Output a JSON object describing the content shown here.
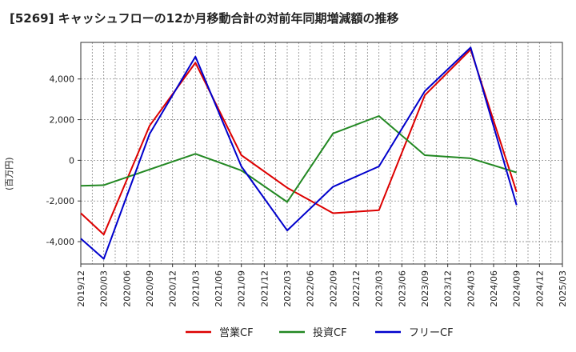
{
  "chart_data": {
    "type": "line",
    "title": "[5269]  キャッシュフローの12か月移動合計の対前年同期増減額の推移",
    "ylabel": "(百万円)",
    "xlabel": "",
    "x_ticks": [
      "2019/12",
      "2020/03",
      "2020/06",
      "2020/09",
      "2020/12",
      "2021/03",
      "2021/06",
      "2021/09",
      "2021/12",
      "2022/03",
      "2022/06",
      "2022/09",
      "2022/12",
      "2023/03",
      "2023/06",
      "2023/09",
      "2023/12",
      "2024/03",
      "2024/06",
      "2024/09",
      "2024/12",
      "2025/03"
    ],
    "y_ticks": [
      4000,
      2000,
      0,
      -2000,
      -4000
    ],
    "y_tick_labels": [
      "4,000",
      "2,000",
      "0",
      "-2,000",
      "-4,000"
    ],
    "ylim": [
      -5100,
      5800
    ],
    "grid": true,
    "legend_position": "bottom",
    "series": [
      {
        "name": "営業CF",
        "color": "#dd0000",
        "points": [
          [
            "2019/12",
            -2600
          ],
          [
            "2020/03",
            -3650
          ],
          [
            "2020/09",
            1700
          ],
          [
            "2021/03",
            4800
          ],
          [
            "2021/09",
            250
          ],
          [
            "2022/03",
            -1350
          ],
          [
            "2022/09",
            -2600
          ],
          [
            "2023/03",
            -2450
          ],
          [
            "2023/09",
            3200
          ],
          [
            "2024/03",
            5450
          ],
          [
            "2024/09",
            -1550
          ]
        ]
      },
      {
        "name": "投資CF",
        "color": "#228822",
        "points": [
          [
            "2019/12",
            -1250
          ],
          [
            "2020/03",
            -1220
          ],
          [
            "2020/09",
            -450
          ],
          [
            "2021/03",
            320
          ],
          [
            "2021/09",
            -500
          ],
          [
            "2022/03",
            -2050
          ],
          [
            "2022/09",
            1320
          ],
          [
            "2023/03",
            2180
          ],
          [
            "2023/09",
            250
          ],
          [
            "2024/03",
            100
          ],
          [
            "2024/09",
            -600
          ]
        ]
      },
      {
        "name": "フリーCF",
        "color": "#0000cc",
        "points": [
          [
            "2019/12",
            -3850
          ],
          [
            "2020/03",
            -4850
          ],
          [
            "2020/09",
            1300
          ],
          [
            "2021/03",
            5100
          ],
          [
            "2021/09",
            -300
          ],
          [
            "2022/03",
            -3450
          ],
          [
            "2022/09",
            -1300
          ],
          [
            "2023/03",
            -300
          ],
          [
            "2023/09",
            3400
          ],
          [
            "2024/03",
            5550
          ],
          [
            "2024/09",
            -2200
          ]
        ]
      }
    ]
  }
}
